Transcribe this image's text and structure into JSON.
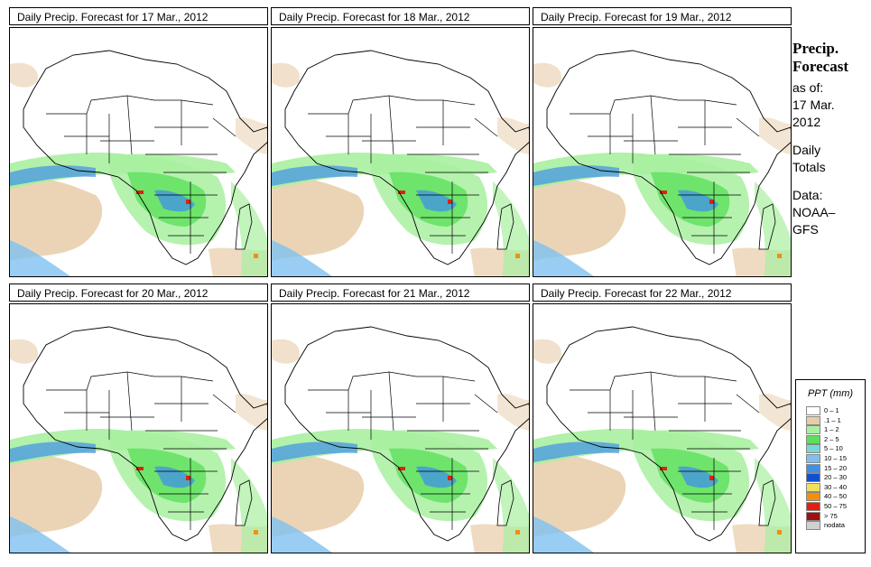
{
  "panels": [
    {
      "title": "Daily Precip. Forecast for  17 Mar., 2012"
    },
    {
      "title": "Daily Precip. Forecast for  18 Mar., 2012"
    },
    {
      "title": "Daily Precip. Forecast for  19 Mar., 2012"
    },
    {
      "title": "Daily Precip. Forecast for  20 Mar., 2012"
    },
    {
      "title": "Daily Precip. Forecast for  21 Mar., 2012"
    },
    {
      "title": "Daily Precip. Forecast for  22 Mar., 2012"
    }
  ],
  "side": {
    "heading1": "Precip.",
    "heading2": "Forecast",
    "asof": "as of:",
    "date1": "17 Mar.",
    "date2": "2012",
    "daily1": "Daily",
    "daily2": "Totals",
    "data1": "Data:",
    "data2": "NOAA–",
    "data3": "GFS"
  },
  "legend": {
    "title": "PPT (mm)",
    "items": [
      {
        "label": "0 – 1",
        "color": "#ffffff"
      },
      {
        "label": ".1 – 1",
        "color": "#e8cca8"
      },
      {
        "label": "1 – 2",
        "color": "#a8f0a0"
      },
      {
        "label": "2 – 5",
        "color": "#5ce05c"
      },
      {
        "label": "5 – 10",
        "color": "#78d8d8"
      },
      {
        "label": "10 – 15",
        "color": "#80c0f0"
      },
      {
        "label": "15 – 20",
        "color": "#4090e8"
      },
      {
        "label": "20 – 30",
        "color": "#1050d0"
      },
      {
        "label": "30 – 40",
        "color": "#f0e060"
      },
      {
        "label": "40 – 50",
        "color": "#f09010"
      },
      {
        "label": "50 – 75",
        "color": "#e02010"
      },
      {
        "label": "> 75",
        "color": "#a01010"
      },
      {
        "label": "nodata",
        "color": "#d0d0d0"
      }
    ]
  }
}
